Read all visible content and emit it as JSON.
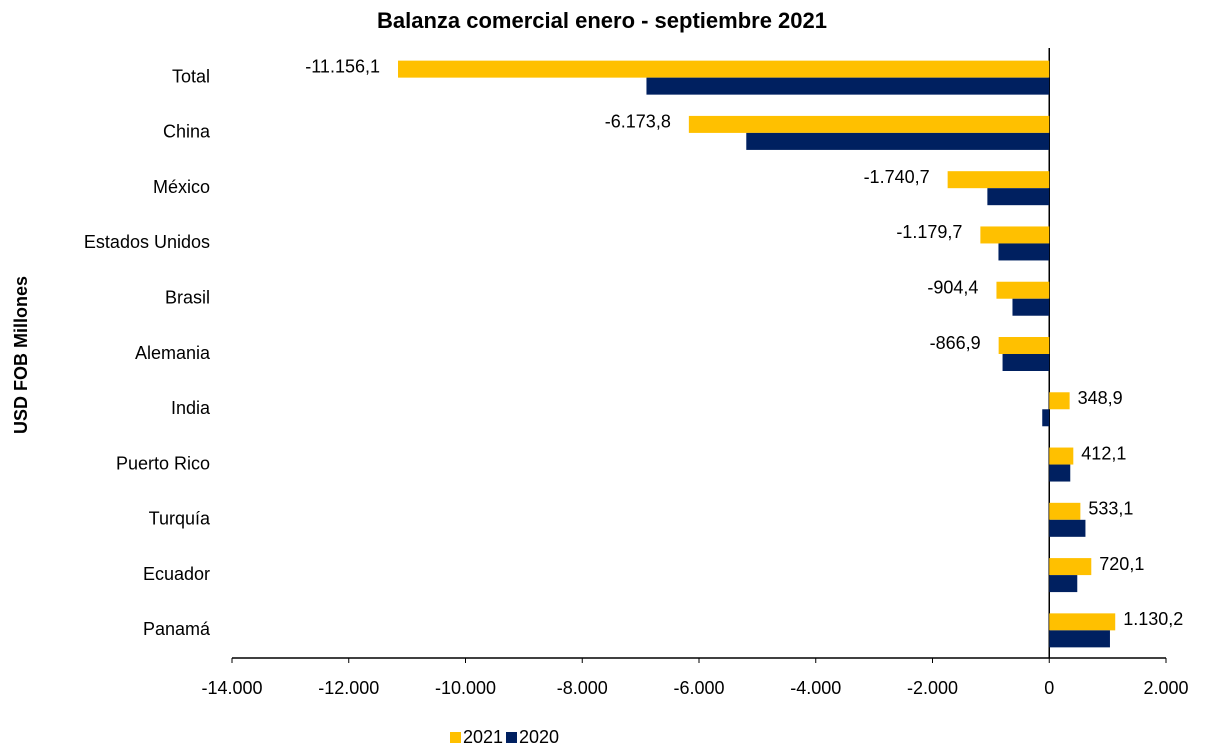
{
  "chart_data": {
    "type": "barh",
    "title": "Balanza comercial enero - septiembre 2021",
    "ylabel": "USD FOB Millones",
    "categories": [
      "Total",
      "China",
      "México",
      "Estados Unidos",
      "Brasil",
      "Alemania",
      "India",
      "Puerto Rico",
      "Turquía",
      "Ecuador",
      "Panamá"
    ],
    "series": [
      {
        "name": "2021",
        "color": "#FFC000",
        "values": [
          -11156.1,
          -6173.8,
          -1740.7,
          -1179.7,
          -904.4,
          -866.9,
          348.9,
          412.1,
          533.1,
          720.1,
          1130.2
        ],
        "value_labels": [
          "-11.156,1",
          "-6.173,8",
          "-1.740,7",
          "-1.179,7",
          "-904,4",
          "-866,9",
          "348,9",
          "412,1",
          "533,1",
          "720,1",
          "1.130,2"
        ]
      },
      {
        "name": "2020",
        "color": "#002060",
        "values": [
          -6900,
          -5190,
          -1060,
          -870,
          -630,
          -800,
          -120,
          360,
          620,
          480,
          1040
        ]
      }
    ],
    "xlim": [
      -14000,
      2000
    ],
    "xticks": [
      {
        "value": -14000,
        "label": "-14.000"
      },
      {
        "value": -12000,
        "label": "-12.000"
      },
      {
        "value": -10000,
        "label": "-10.000"
      },
      {
        "value": -8000,
        "label": "-8.000"
      },
      {
        "value": -6000,
        "label": "-6.000"
      },
      {
        "value": -4000,
        "label": "-4.000"
      },
      {
        "value": -2000,
        "label": "-2.000"
      },
      0,
      {
        "value": 2000,
        "label": "2.000"
      }
    ],
    "grid": false,
    "legend": "bottom"
  }
}
